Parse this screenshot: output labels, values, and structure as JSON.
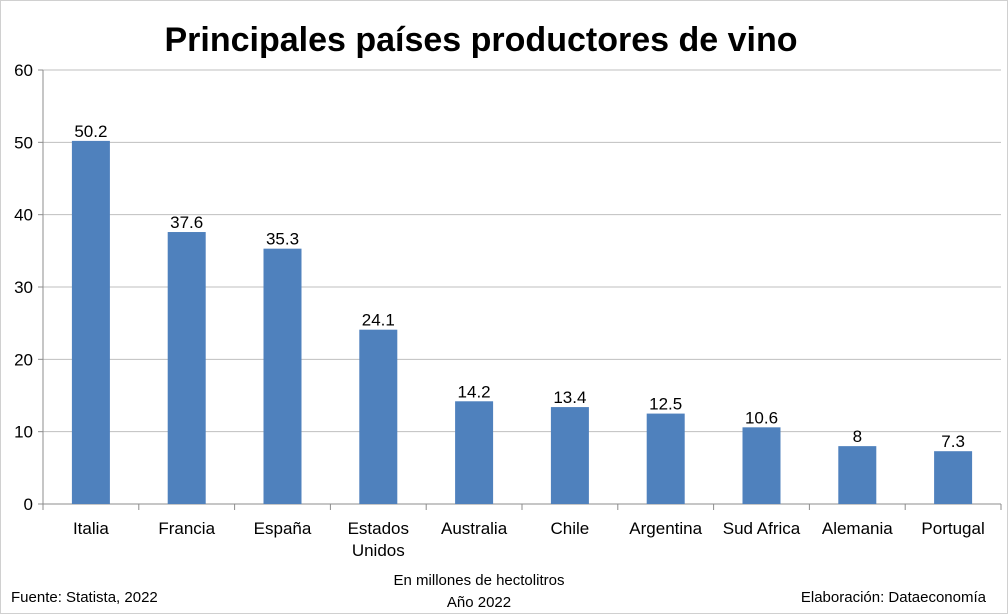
{
  "colors": {
    "bar": "#4f81bd",
    "gridline": "#bfbfbf",
    "axis": "#8c8c8c",
    "text": "#000000"
  },
  "chart_data": {
    "type": "bar",
    "title": "Principales países productores de vino",
    "categories": [
      "Italia",
      "Francia",
      "España",
      "Estados Unidos",
      "Australia",
      "Chile",
      "Argentina",
      "Sud Africa",
      "Alemania",
      "Portugal"
    ],
    "category_lines": [
      [
        "Italia"
      ],
      [
        "Francia"
      ],
      [
        "España"
      ],
      [
        "Estados",
        "Unidos"
      ],
      [
        "Australia"
      ],
      [
        "Chile"
      ],
      [
        "Argentina"
      ],
      [
        "Sud Africa"
      ],
      [
        "Alemania"
      ],
      [
        "Portugal"
      ]
    ],
    "values": [
      50.2,
      37.6,
      35.3,
      24.1,
      14.2,
      13.4,
      12.5,
      10.6,
      8,
      7.3
    ],
    "data_labels": [
      "50.2",
      "37.6",
      "35.3",
      "24.1",
      "14.2",
      "13.4",
      "12.5",
      "10.6",
      "8",
      "7.3"
    ],
    "ylim": [
      0,
      60
    ],
    "yticks": [
      0,
      10,
      20,
      30,
      40,
      50,
      60
    ],
    "grid": true,
    "legend": "none",
    "xlabel": "",
    "ylabel": ""
  },
  "footer": {
    "source": "Fuente: Statista, 2022",
    "units_line1": "En millones de hectolitros",
    "units_line2": "Año 2022",
    "credit": "Elaboración: Dataeconomía"
  }
}
